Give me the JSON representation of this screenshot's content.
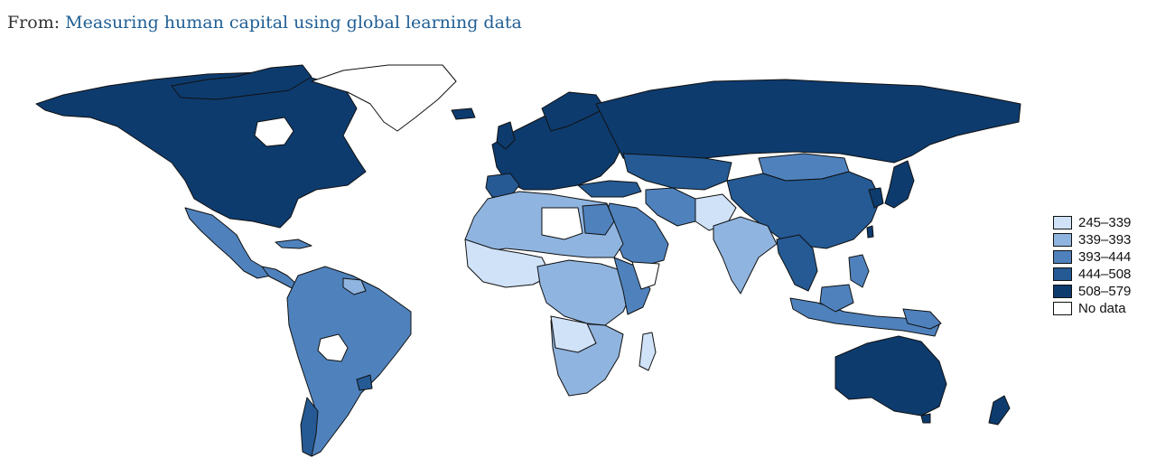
{
  "header": {
    "prefix": "From: ",
    "link_text": "Measuring human capital using global learning data"
  },
  "colors": {
    "c1": "#cfe2f8",
    "c2": "#8fb4df",
    "c3": "#4f82bd",
    "c4": "#255a94",
    "c5": "#0d3b6e",
    "nodata": "#ffffff",
    "border": "#111111"
  },
  "legend": {
    "items": [
      {
        "label": "245–339",
        "color": "#cfe2f8"
      },
      {
        "label": "339–393",
        "color": "#8fb4df"
      },
      {
        "label": "393–444",
        "color": "#4f82bd"
      },
      {
        "label": "444–508",
        "color": "#255a94"
      },
      {
        "label": "508–579",
        "color": "#0d3b6e"
      },
      {
        "label": "No data",
        "color": "#ffffff"
      }
    ]
  }
}
